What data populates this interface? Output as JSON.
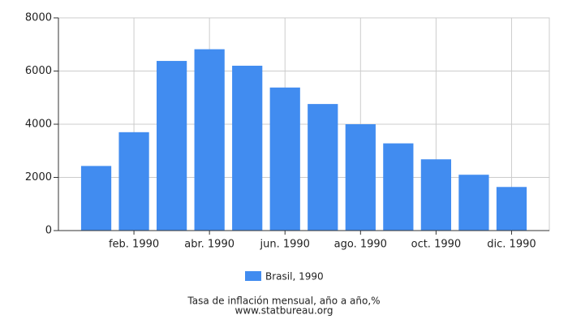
{
  "chart_data": {
    "type": "bar",
    "title": "Tasa de inflación mensual, año a año,%",
    "source": "www.statbureau.org",
    "categories": [
      null,
      "feb. 1990",
      null,
      "abr. 1990",
      null,
      "jun. 1990",
      null,
      "ago. 1990",
      null,
      "oct. 1990",
      null,
      "dic. 1990"
    ],
    "series": [
      {
        "name": "Brasil, 1990",
        "color": "#418cf0",
        "values": [
          2430,
          3700,
          6380,
          6820,
          6200,
          5380,
          4760,
          4000,
          3280,
          2680,
          2100,
          1640
        ]
      }
    ],
    "ylim": [
      0,
      8000
    ],
    "yticks": [
      0,
      2000,
      4000,
      6000,
      8000
    ],
    "grid": true
  }
}
